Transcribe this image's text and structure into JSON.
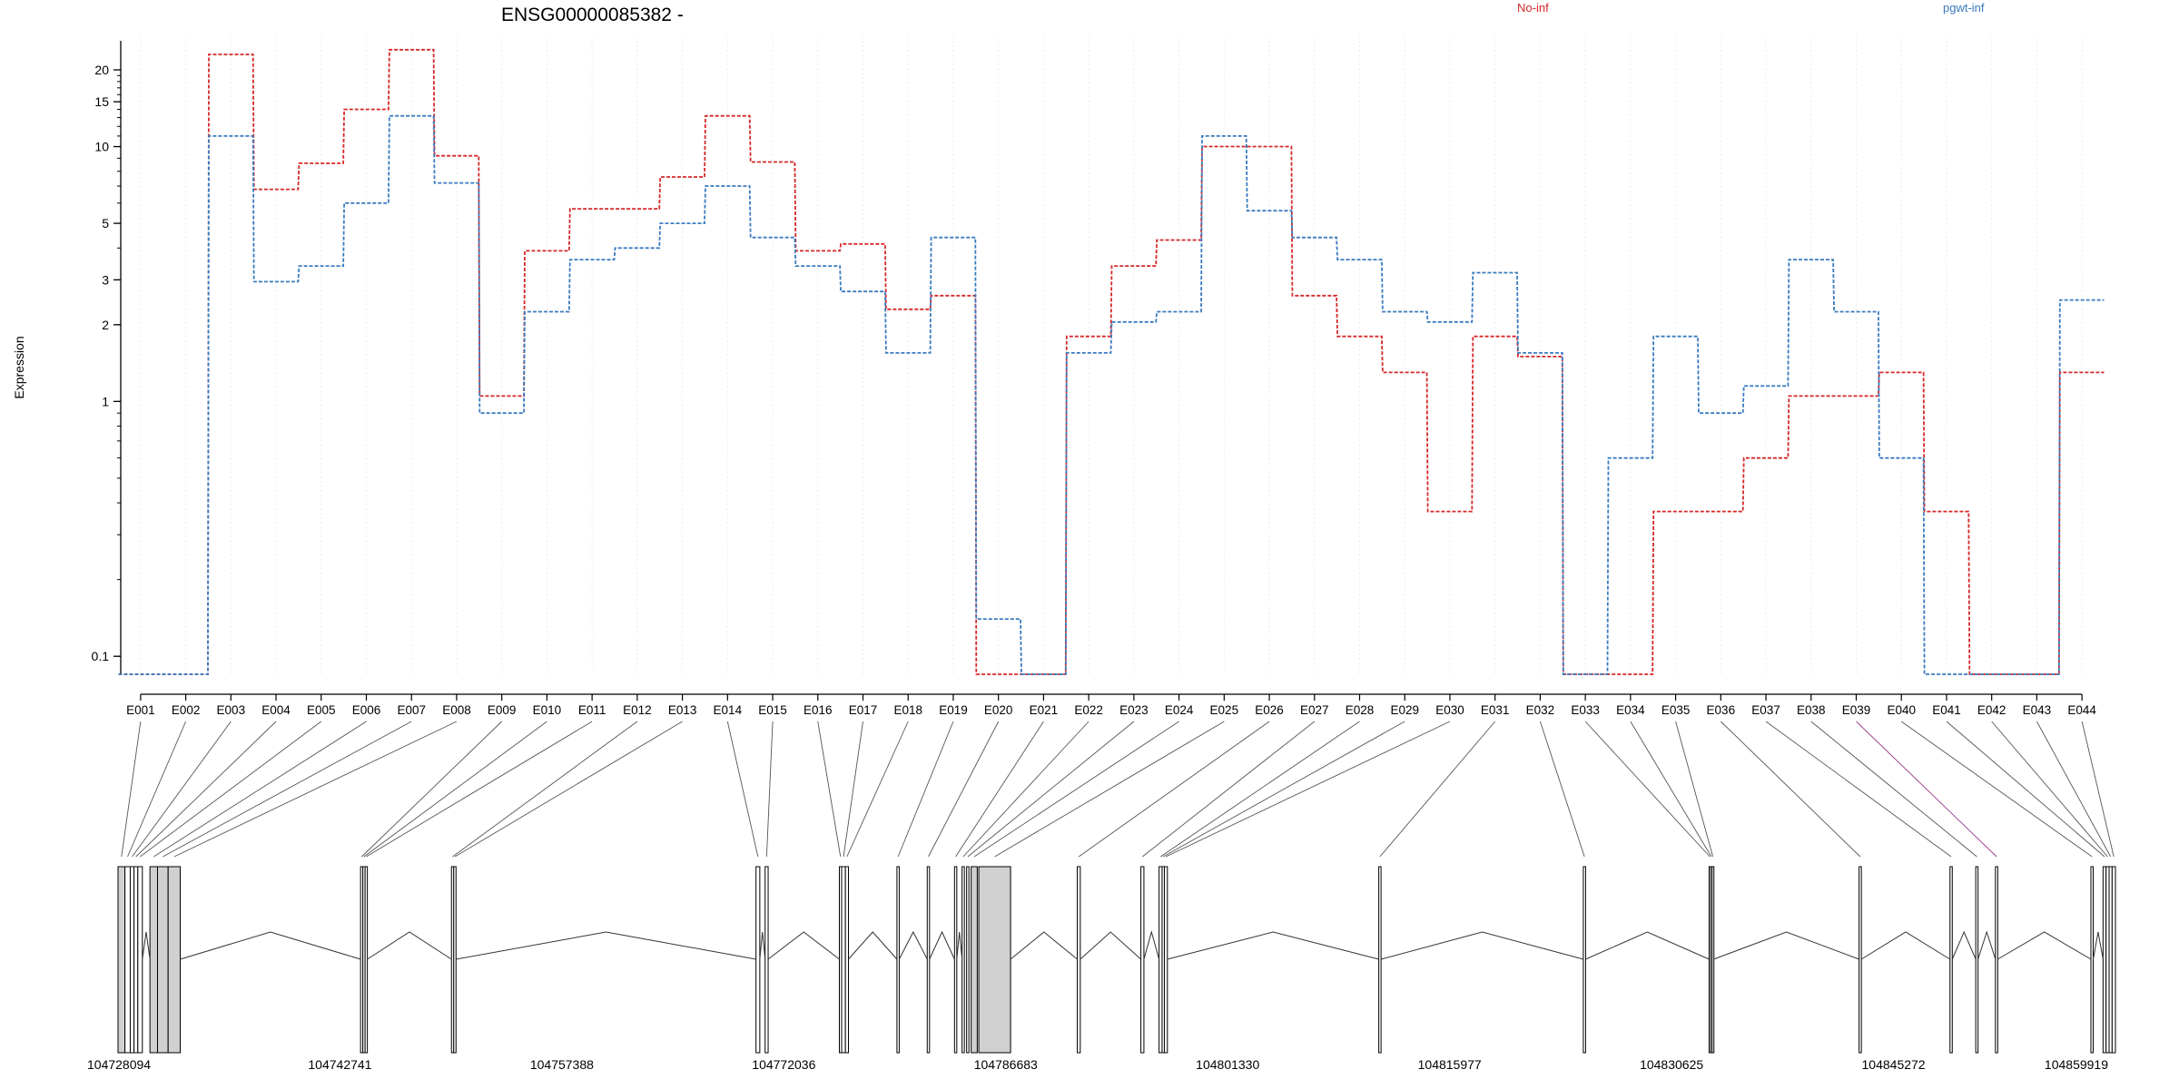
{
  "chart_data": {
    "type": "line",
    "title": "ENSG00000085382 -",
    "ylabel": "Expression",
    "y_scale": "log",
    "ylim": [
      0.085,
      26
    ],
    "y_ticks": [
      {
        "v": 0.1,
        "label": "0.1"
      },
      {
        "v": 1,
        "label": "1"
      },
      {
        "v": 2,
        "label": "2"
      },
      {
        "v": 3,
        "label": "3"
      },
      {
        "v": 5,
        "label": "5"
      },
      {
        "v": 10,
        "label": "10"
      },
      {
        "v": 15,
        "label": "15"
      },
      {
        "v": 20,
        "label": "20"
      }
    ],
    "legend_placement": "top",
    "categories": [
      "E001",
      "E002",
      "E003",
      "E004",
      "E005",
      "E006",
      "E007",
      "E008",
      "E009",
      "E010",
      "E011",
      "E012",
      "E013",
      "E014",
      "E015",
      "E016",
      "E017",
      "E018",
      "E019",
      "E020",
      "E021",
      "E022",
      "E023",
      "E024",
      "E025",
      "E026",
      "E027",
      "E028",
      "E029",
      "E030",
      "E031",
      "E032",
      "E033",
      "E034",
      "E035",
      "E036",
      "E037",
      "E038",
      "E039",
      "E040",
      "E041",
      "E042",
      "E043",
      "E044"
    ],
    "series": [
      {
        "name": "No-inf",
        "color": "#d62728",
        "values": [
          0.085,
          0.085,
          23,
          6.8,
          8.6,
          14,
          24,
          9.2,
          1.05,
          3.9,
          5.7,
          5.7,
          7.6,
          13.2,
          8.7,
          3.9,
          4.15,
          2.3,
          2.6,
          0.085,
          0.085,
          1.8,
          3.4,
          4.3,
          10,
          10,
          2.6,
          1.8,
          1.3,
          0.37,
          1.8,
          1.5,
          0.085,
          0.085,
          0.37,
          0.37,
          0.6,
          1.05,
          1.05,
          1.3,
          0.37,
          0.085,
          0.085,
          1.3
        ]
      },
      {
        "name": "pgwt-inf",
        "color": "#3a7bbf",
        "values": [
          0.085,
          0.085,
          11,
          2.95,
          3.4,
          6,
          13.2,
          7.2,
          0.9,
          2.25,
          3.6,
          4,
          5,
          7,
          4.4,
          3.4,
          2.7,
          1.55,
          4.4,
          0.14,
          0.085,
          1.55,
          2.05,
          2.25,
          11,
          5.6,
          4.4,
          3.6,
          2.25,
          2.05,
          3.2,
          1.55,
          0.085,
          0.6,
          1.8,
          0.9,
          1.15,
          3.6,
          2.25,
          0.6,
          0.085,
          0.085,
          0.085,
          2.5
        ]
      }
    ],
    "genomic_axis": {
      "start": 104728094,
      "end": 104859919,
      "tick_labels": [
        "104728094",
        "104742741",
        "104757388",
        "104772036",
        "104786683",
        "104801330",
        "104815977",
        "104830625",
        "104845272",
        "104859919"
      ]
    },
    "exons": [
      {
        "id": "E001",
        "s": 104728094,
        "e": 104728550
      },
      {
        "id": "E002",
        "s": 104728550,
        "e": 104728900
      },
      {
        "id": "E003",
        "s": 104728900,
        "e": 104729150
      },
      {
        "id": "E004",
        "s": 104729150,
        "e": 104729400
      },
      {
        "id": "E005",
        "s": 104729400,
        "e": 104729700
      },
      {
        "id": "E006",
        "s": 104730200,
        "e": 104730700
      },
      {
        "id": "E007",
        "s": 104730700,
        "e": 104731400
      },
      {
        "id": "E008",
        "s": 104731400,
        "e": 104732200
      },
      {
        "id": "E009",
        "s": 104744100,
        "e": 104744250
      },
      {
        "id": "E010",
        "s": 104744250,
        "e": 104744400
      },
      {
        "id": "E011",
        "s": 104744400,
        "e": 104744550
      },
      {
        "id": "E012",
        "s": 104750100,
        "e": 104750250
      },
      {
        "id": "E013",
        "s": 104750250,
        "e": 104750400
      },
      {
        "id": "E014",
        "s": 104770200,
        "e": 104770450
      },
      {
        "id": "E015",
        "s": 104770800,
        "e": 104771000
      },
      {
        "id": "E016",
        "s": 104775700,
        "e": 104775850
      },
      {
        "id": "E017",
        "s": 104775850,
        "e": 104776100
      },
      {
        "id": "E018",
        "s": 104776100,
        "e": 104776300
      },
      {
        "id": "E019",
        "s": 104779500,
        "e": 104779650
      },
      {
        "id": "E020",
        "s": 104781500,
        "e": 104781650
      },
      {
        "id": "E021",
        "s": 104783300,
        "e": 104783450
      },
      {
        "id": "E022",
        "s": 104783800,
        "e": 104783950
      },
      {
        "id": "E023",
        "s": 104784100,
        "e": 104784250
      },
      {
        "id": "E024",
        "s": 104784400,
        "e": 104784800
      },
      {
        "id": "E025",
        "s": 104784900,
        "e": 104787000
      },
      {
        "id": "E026",
        "s": 104791400,
        "e": 104791600
      },
      {
        "id": "E027",
        "s": 104795600,
        "e": 104795800
      },
      {
        "id": "E028",
        "s": 104796800,
        "e": 104797000
      },
      {
        "id": "E029",
        "s": 104797000,
        "e": 104797150
      },
      {
        "id": "E030",
        "s": 104797150,
        "e": 104797350
      },
      {
        "id": "E031",
        "s": 104811300,
        "e": 104811450
      },
      {
        "id": "E032",
        "s": 104824800,
        "e": 104824950
      },
      {
        "id": "E033",
        "s": 104833100,
        "e": 104833200
      },
      {
        "id": "E034",
        "s": 104833200,
        "e": 104833300
      },
      {
        "id": "E035",
        "s": 104833300,
        "e": 104833400
      },
      {
        "id": "E036",
        "s": 104843000,
        "e": 104843150
      },
      {
        "id": "E037",
        "s": 104849000,
        "e": 104849150
      },
      {
        "id": "E038",
        "s": 104850700,
        "e": 104850850
      },
      {
        "id": "E039",
        "s": 104852000,
        "e": 104852150
      },
      {
        "id": "E040",
        "s": 104858300,
        "e": 104858450
      },
      {
        "id": "E041",
        "s": 104859100,
        "e": 104859300
      },
      {
        "id": "E042",
        "s": 104859300,
        "e": 104859500
      },
      {
        "id": "E043",
        "s": 104859500,
        "e": 104859700
      },
      {
        "id": "E044",
        "s": 104859700,
        "e": 104859919
      }
    ]
  }
}
